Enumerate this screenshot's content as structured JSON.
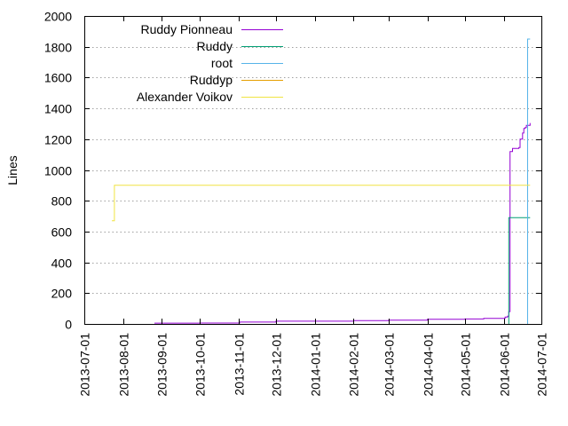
{
  "chart_data": {
    "type": "line",
    "title": "",
    "xlabel": "",
    "ylabel": "Lines",
    "ylim": [
      0,
      2000
    ],
    "xlim": [
      "2013-07-01",
      "2014-07-01"
    ],
    "x_axis_type": "date",
    "grid": "horizontal dotted lines at y ticks",
    "legend_position": "top-left",
    "y_ticks": [
      "0",
      "200",
      "400",
      "600",
      "800",
      "1000",
      "1200",
      "1400",
      "1600",
      "1800",
      "2000"
    ],
    "x_ticks": [
      "2013-07-01",
      "2013-08-01",
      "2013-09-01",
      "2013-10-01",
      "2013-11-01",
      "2013-12-01",
      "2014-01-01",
      "2014-02-01",
      "2014-03-01",
      "2014-04-01",
      "2014-05-01",
      "2014-06-01",
      "2014-07-01"
    ],
    "series": [
      {
        "name": "Ruddy Pionneau",
        "color": "#9400d3",
        "points": [
          [
            "2013-08-26",
            5
          ],
          [
            "2013-10-01",
            6
          ],
          [
            "2013-11-02",
            12
          ],
          [
            "2013-12-01",
            18
          ],
          [
            "2014-01-01",
            18
          ],
          [
            "2014-02-01",
            22
          ],
          [
            "2014-03-01",
            24
          ],
          [
            "2014-04-01",
            30
          ],
          [
            "2014-05-01",
            32
          ],
          [
            "2014-05-15",
            32
          ],
          [
            "2014-05-16",
            36
          ],
          [
            "2014-05-31",
            36
          ],
          [
            "2014-06-02",
            45
          ],
          [
            "2014-06-04",
            50
          ],
          [
            "2014-06-05",
            80
          ],
          [
            "2014-06-06",
            1120
          ],
          [
            "2014-06-08",
            1140
          ],
          [
            "2014-06-13",
            1145
          ],
          [
            "2014-06-14",
            1200
          ],
          [
            "2014-06-16",
            1240
          ],
          [
            "2014-06-17",
            1270
          ],
          [
            "2014-06-18",
            1275
          ],
          [
            "2014-06-19",
            1290
          ],
          [
            "2014-06-22",
            1305
          ]
        ]
      },
      {
        "name": "Ruddy",
        "color": "#009e73",
        "points": [
          [
            "2014-06-05",
            0
          ],
          [
            "2014-06-05",
            690
          ],
          [
            "2014-06-22",
            690
          ]
        ]
      },
      {
        "name": "root",
        "color": "#56b4e9",
        "points": [
          [
            "2014-06-20",
            0
          ],
          [
            "2014-06-20",
            1850
          ],
          [
            "2014-06-22",
            1850
          ]
        ]
      },
      {
        "name": "Ruddyp",
        "color": "#e69f00",
        "points": []
      },
      {
        "name": "Alexander Voikov",
        "color": "#f0e442",
        "points": [
          [
            "2013-07-23",
            670
          ],
          [
            "2013-07-25",
            900
          ],
          [
            "2014-06-22",
            900
          ]
        ]
      }
    ]
  }
}
